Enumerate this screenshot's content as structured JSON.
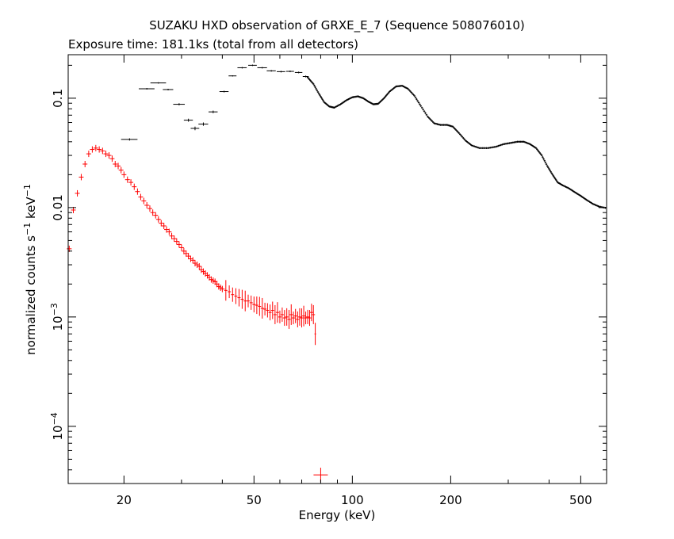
{
  "chart_data": {
    "type": "scatter",
    "title": "SUZAKU HXD observation of GRXE_E_7 (Sequence 508076010)",
    "subtitle": "Exposure time: 181.1ks (total from all detectors)",
    "xlabel": "Energy (keV)",
    "ylabel": "normalized counts s^-1 keV^-1",
    "x_scale": "log",
    "y_scale": "log",
    "xlim": [
      13.5,
      600
    ],
    "ylim": [
      3e-05,
      0.25
    ],
    "x_ticks": [
      {
        "value": 20,
        "label": "20"
      },
      {
        "value": 50,
        "label": "50"
      },
      {
        "value": 100,
        "label": "100"
      },
      {
        "value": 200,
        "label": "200"
      },
      {
        "value": 500,
        "label": "500"
      }
    ],
    "y_ticks": [
      {
        "value": 0.1,
        "label": "0.1"
      },
      {
        "value": 0.01,
        "label": "0.01"
      },
      {
        "value": 0.001,
        "label": "10",
        "exp": "−3"
      },
      {
        "value": 0.0001,
        "label": "10",
        "exp": "−4"
      }
    ],
    "grid": false,
    "series": [
      {
        "color": "#000000",
        "note_style": "gso-bins",
        "points": [
          [
            20.8,
            0.042,
            1.2,
            0.001
          ],
          [
            23.5,
            0.122,
            1.3,
            0.002
          ],
          [
            25.5,
            0.138,
            1.4,
            0.002
          ],
          [
            27.3,
            0.12,
            1.0,
            0.002
          ],
          [
            29.5,
            0.088,
            1.2,
            0.002
          ],
          [
            31.5,
            0.063,
            1.0,
            0.002
          ],
          [
            33.0,
            0.053,
            1.0,
            0.002
          ],
          [
            35.0,
            0.058,
            1.2,
            0.002
          ],
          [
            37.5,
            0.075,
            1.2,
            0.002
          ],
          [
            40.5,
            0.115,
            1.3,
            0.002
          ],
          [
            43.0,
            0.16,
            1.2,
            0.002
          ],
          [
            46.0,
            0.19,
            1.5,
            0.003
          ],
          [
            49.5,
            0.2,
            1.5,
            0.003
          ],
          [
            53.0,
            0.19,
            1.8,
            0.003
          ],
          [
            56.5,
            0.178,
            1.8,
            0.003
          ],
          [
            60.5,
            0.175,
            1.8,
            0.003
          ],
          [
            64.5,
            0.176,
            1.8,
            0.003
          ],
          [
            68.5,
            0.172,
            1.8,
            0.003
          ],
          [
            72.0,
            0.158,
            1.5,
            0.003
          ]
        ],
        "curve": [
          [
            73,
            0.155
          ],
          [
            76,
            0.135
          ],
          [
            79,
            0.11
          ],
          [
            82,
            0.092
          ],
          [
            85,
            0.084
          ],
          [
            88,
            0.082
          ],
          [
            92,
            0.088
          ],
          [
            96,
            0.096
          ],
          [
            100,
            0.102
          ],
          [
            104,
            0.104
          ],
          [
            108,
            0.1
          ],
          [
            112,
            0.093
          ],
          [
            116,
            0.088
          ],
          [
            120,
            0.089
          ],
          [
            125,
            0.1
          ],
          [
            130,
            0.115
          ],
          [
            136,
            0.128
          ],
          [
            142,
            0.13
          ],
          [
            148,
            0.122
          ],
          [
            155,
            0.105
          ],
          [
            162,
            0.085
          ],
          [
            170,
            0.068
          ],
          [
            178,
            0.059
          ],
          [
            186,
            0.057
          ],
          [
            195,
            0.057
          ],
          [
            203,
            0.055
          ],
          [
            212,
            0.048
          ],
          [
            222,
            0.041
          ],
          [
            232,
            0.037
          ],
          [
            245,
            0.035
          ],
          [
            260,
            0.035
          ],
          [
            275,
            0.036
          ],
          [
            290,
            0.038
          ],
          [
            305,
            0.039
          ],
          [
            320,
            0.04
          ],
          [
            335,
            0.04
          ],
          [
            350,
            0.038
          ],
          [
            365,
            0.035
          ],
          [
            380,
            0.03
          ],
          [
            395,
            0.024
          ],
          [
            410,
            0.02
          ],
          [
            425,
            0.017
          ],
          [
            440,
            0.016
          ],
          [
            460,
            0.015
          ],
          [
            480,
            0.0138
          ],
          [
            500,
            0.0128
          ],
          [
            520,
            0.0118
          ],
          [
            545,
            0.0108
          ],
          [
            570,
            0.0102
          ],
          [
            600,
            0.0099
          ]
        ]
      },
      {
        "color": "#ff0000",
        "note_style": "pin-bins",
        "points": [
          [
            13.6,
            0.0042
          ],
          [
            14.0,
            0.0095
          ],
          [
            14.4,
            0.0135
          ],
          [
            14.8,
            0.019
          ],
          [
            15.2,
            0.025
          ],
          [
            15.6,
            0.031
          ],
          [
            16.0,
            0.034
          ],
          [
            16.4,
            0.035
          ],
          [
            16.8,
            0.034
          ],
          [
            17.2,
            0.033
          ],
          [
            17.6,
            0.031
          ],
          [
            18.0,
            0.03
          ],
          [
            18.4,
            0.028
          ],
          [
            18.8,
            0.025
          ],
          [
            19.2,
            0.024
          ],
          [
            19.6,
            0.022
          ],
          [
            20.0,
            0.02
          ],
          [
            20.5,
            0.018
          ],
          [
            21.0,
            0.017
          ],
          [
            21.5,
            0.0155
          ],
          [
            22.0,
            0.014
          ],
          [
            22.5,
            0.0125
          ],
          [
            23.0,
            0.0115
          ],
          [
            23.5,
            0.0105
          ],
          [
            24.0,
            0.0098
          ],
          [
            24.5,
            0.009
          ],
          [
            25.0,
            0.0085
          ],
          [
            25.5,
            0.0078
          ],
          [
            26.0,
            0.0072
          ],
          [
            26.5,
            0.0068
          ],
          [
            27.0,
            0.0063
          ],
          [
            27.5,
            0.006
          ],
          [
            28.0,
            0.0055
          ],
          [
            28.5,
            0.0052
          ],
          [
            29.0,
            0.0049
          ],
          [
            29.5,
            0.0046
          ],
          [
            30.0,
            0.0043
          ],
          [
            30.5,
            0.004
          ],
          [
            31.0,
            0.0038
          ],
          [
            31.5,
            0.0036
          ],
          [
            32.0,
            0.0034
          ],
          [
            32.5,
            0.0033
          ],
          [
            33.0,
            0.0031
          ],
          [
            33.5,
            0.003
          ],
          [
            34.0,
            0.0029
          ],
          [
            34.5,
            0.0027
          ],
          [
            35.0,
            0.0026
          ],
          [
            35.5,
            0.0025
          ],
          [
            36.0,
            0.0024
          ],
          [
            36.5,
            0.0023
          ],
          [
            37.0,
            0.0022
          ],
          [
            37.5,
            0.00215
          ],
          [
            38.0,
            0.0021
          ],
          [
            38.5,
            0.002
          ],
          [
            39.0,
            0.0019
          ],
          [
            39.5,
            0.00185
          ],
          [
            40.0,
            0.0018
          ],
          [
            41.0,
            0.00175
          ],
          [
            42.0,
            0.0017
          ],
          [
            43.0,
            0.0016
          ],
          [
            44.0,
            0.00155
          ],
          [
            45.0,
            0.0015
          ],
          [
            46.0,
            0.00145
          ],
          [
            47.0,
            0.0014
          ],
          [
            48.0,
            0.0014
          ],
          [
            49.0,
            0.00135
          ],
          [
            50.0,
            0.0013
          ],
          [
            51.0,
            0.00128
          ],
          [
            52.0,
            0.00125
          ],
          [
            53.0,
            0.0012
          ],
          [
            54.0,
            0.00118
          ],
          [
            55.0,
            0.00115
          ],
          [
            56.0,
            0.0011
          ],
          [
            57.0,
            0.00115
          ],
          [
            58.0,
            0.00105
          ],
          [
            59.0,
            0.0011
          ],
          [
            60.0,
            0.001
          ],
          [
            61.0,
            0.00105
          ],
          [
            62.0,
            0.00098
          ],
          [
            63.0,
            0.001
          ],
          [
            64.0,
            0.00095
          ],
          [
            65.0,
            0.00105
          ],
          [
            66.0,
            0.00098
          ],
          [
            67.0,
            0.00102
          ],
          [
            68.0,
            0.00095
          ],
          [
            69.0,
            0.001
          ],
          [
            70.0,
            0.00098
          ],
          [
            71.0,
            0.00102
          ],
          [
            72.0,
            0.00098
          ],
          [
            73.0,
            0.001
          ],
          [
            74.0,
            0.00098
          ],
          [
            75.0,
            0.0011
          ],
          [
            76.0,
            0.00105
          ],
          [
            77.0,
            0.0007
          ],
          [
            80.0,
            3.6e-05
          ]
        ]
      }
    ]
  }
}
